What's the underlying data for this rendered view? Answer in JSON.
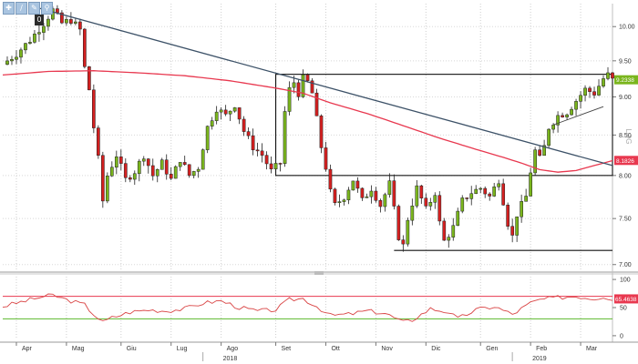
{
  "toolbar": {
    "tools": [
      {
        "name": "crosshair",
        "glyph": "✚"
      },
      {
        "name": "draw",
        "glyph": "∕"
      },
      {
        "name": "edit",
        "glyph": "✎"
      },
      {
        "name": "zoom",
        "glyph": "⚲"
      }
    ],
    "zero_label": "0"
  },
  "chart_data": [
    {
      "type": "candlestick",
      "title": "",
      "ylim": [
        6.95,
        10.35
      ],
      "yticks": [
        7.0,
        7.5,
        8.0,
        8.5,
        9.0,
        9.5,
        10.0
      ],
      "ytick_labels": [
        "7.00",
        "7.50",
        "8.00",
        "8.50",
        "9.00",
        "9.50",
        "10.00"
      ],
      "xtick_labels": [
        "Apr",
        "Mag",
        "Giu",
        "Lug",
        "Ago",
        "Set",
        "Ott",
        "Nov",
        "Dic",
        "Gen",
        "Feb",
        "Mar"
      ],
      "year_labels": [
        "2018",
        "2019"
      ],
      "side_label": "LOG",
      "last_price_label": "9.2338",
      "ma_value_label": "8.1826",
      "close_path": [
        [
          0,
          9.45
        ],
        [
          3,
          9.6
        ],
        [
          6,
          9.8
        ],
        [
          9,
          10.05
        ],
        [
          11,
          10.25
        ],
        [
          13,
          10.05
        ],
        [
          15,
          10.1
        ],
        [
          17,
          9.95
        ],
        [
          18,
          9.4
        ],
        [
          19,
          9.1
        ],
        [
          20,
          8.6
        ],
        [
          21,
          8.2
        ],
        [
          22,
          7.7
        ],
        [
          23,
          8.0
        ],
        [
          25,
          8.25
        ],
        [
          27,
          7.95
        ],
        [
          29,
          8.05
        ],
        [
          31,
          8.25
        ],
        [
          33,
          8.0
        ],
        [
          35,
          8.15
        ],
        [
          37,
          7.95
        ],
        [
          39,
          8.2
        ],
        [
          41,
          8.0
        ],
        [
          43,
          8.1
        ],
        [
          45,
          8.6
        ],
        [
          47,
          8.85
        ],
        [
          49,
          8.75
        ],
        [
          51,
          8.9
        ],
        [
          53,
          8.55
        ],
        [
          55,
          8.35
        ],
        [
          57,
          8.25
        ],
        [
          59,
          8.05
        ],
        [
          61,
          8.15
        ],
        [
          62,
          8.8
        ],
        [
          63,
          9.1
        ],
        [
          64,
          9.2
        ],
        [
          65,
          9.05
        ],
        [
          66,
          9.25
        ],
        [
          67,
          9.2
        ],
        [
          68,
          9.05
        ],
        [
          69,
          8.7
        ],
        [
          70,
          8.35
        ],
        [
          71,
          8.1
        ],
        [
          72,
          7.8
        ],
        [
          73,
          7.65
        ],
        [
          75,
          7.75
        ],
        [
          77,
          7.95
        ],
        [
          79,
          7.7
        ],
        [
          81,
          7.85
        ],
        [
          83,
          7.65
        ],
        [
          85,
          7.9
        ],
        [
          87,
          7.3
        ],
        [
          88,
          7.2
        ],
        [
          89,
          7.5
        ],
        [
          91,
          7.85
        ],
        [
          93,
          7.6
        ],
        [
          95,
          7.8
        ],
        [
          96,
          7.45
        ],
        [
          97,
          7.25
        ],
        [
          99,
          7.4
        ],
        [
          101,
          7.7
        ],
        [
          103,
          7.8
        ],
        [
          105,
          7.85
        ],
        [
          107,
          7.75
        ],
        [
          109,
          7.95
        ],
        [
          111,
          7.45
        ],
        [
          112,
          7.3
        ],
        [
          113,
          7.55
        ],
        [
          115,
          7.75
        ],
        [
          116,
          8.05
        ],
        [
          117,
          8.3
        ],
        [
          118,
          8.2
        ],
        [
          119,
          8.35
        ],
        [
          120,
          8.6
        ],
        [
          122,
          8.75
        ],
        [
          124,
          8.8
        ],
        [
          126,
          8.95
        ],
        [
          128,
          9.1
        ],
        [
          130,
          9.05
        ],
        [
          132,
          9.25
        ],
        [
          133,
          9.3
        ],
        [
          134,
          9.23
        ]
      ],
      "ma_points": [
        [
          0,
          9.3
        ],
        [
          10,
          9.35
        ],
        [
          20,
          9.36
        ],
        [
          30,
          9.33
        ],
        [
          40,
          9.29
        ],
        [
          50,
          9.22
        ],
        [
          60,
          9.12
        ],
        [
          66,
          9.05
        ],
        [
          72,
          8.92
        ],
        [
          80,
          8.78
        ],
        [
          88,
          8.62
        ],
        [
          96,
          8.46
        ],
        [
          104,
          8.32
        ],
        [
          110,
          8.22
        ],
        [
          114,
          8.15
        ],
        [
          118,
          8.07
        ],
        [
          122,
          8.04
        ],
        [
          126,
          8.06
        ],
        [
          130,
          8.12
        ],
        [
          134,
          8.18
        ]
      ],
      "trendline": [
        [
          8,
          10.28
        ],
        [
          134,
          8.12
        ]
      ],
      "small_trendline": [
        [
          121,
          8.63
        ],
        [
          132,
          8.87
        ]
      ],
      "range_boxes": [
        {
          "from": 60,
          "to": 134,
          "top": 9.31,
          "bottom": 8.0
        },
        {
          "from": 86,
          "to": 134,
          "bottom": 7.15
        }
      ]
    },
    {
      "type": "line",
      "title": "",
      "ylim": [
        -5,
        105
      ],
      "yticks": [
        0,
        50,
        100
      ],
      "ytick_labels": [
        "0",
        "50",
        "100"
      ],
      "upper_band": 70,
      "lower_band": 30,
      "last_value_label": "65.4638",
      "series": [
        {
          "values": [
            [
              0,
              52
            ],
            [
              4,
              60
            ],
            [
              8,
              68
            ],
            [
              11,
              72
            ],
            [
              14,
              64
            ],
            [
              18,
              55
            ],
            [
              20,
              38
            ],
            [
              22,
              24
            ],
            [
              24,
              32
            ],
            [
              28,
              42
            ],
            [
              32,
              46
            ],
            [
              36,
              44
            ],
            [
              40,
              48
            ],
            [
              44,
              58
            ],
            [
              48,
              62
            ],
            [
              52,
              50
            ],
            [
              56,
              44
            ],
            [
              60,
              46
            ],
            [
              63,
              64
            ],
            [
              66,
              66
            ],
            [
              69,
              52
            ],
            [
              72,
              36
            ],
            [
              76,
              38
            ],
            [
              80,
              44
            ],
            [
              84,
              40
            ],
            [
              88,
              24
            ],
            [
              90,
              28
            ],
            [
              94,
              48
            ],
            [
              98,
              42
            ],
            [
              100,
              30
            ],
            [
              104,
              46
            ],
            [
              108,
              52
            ],
            [
              112,
              38
            ],
            [
              116,
              58
            ],
            [
              118,
              64
            ],
            [
              122,
              68
            ],
            [
              126,
              70
            ],
            [
              130,
              66
            ],
            [
              132,
              70
            ],
            [
              134,
              65
            ]
          ]
        }
      ]
    }
  ]
}
